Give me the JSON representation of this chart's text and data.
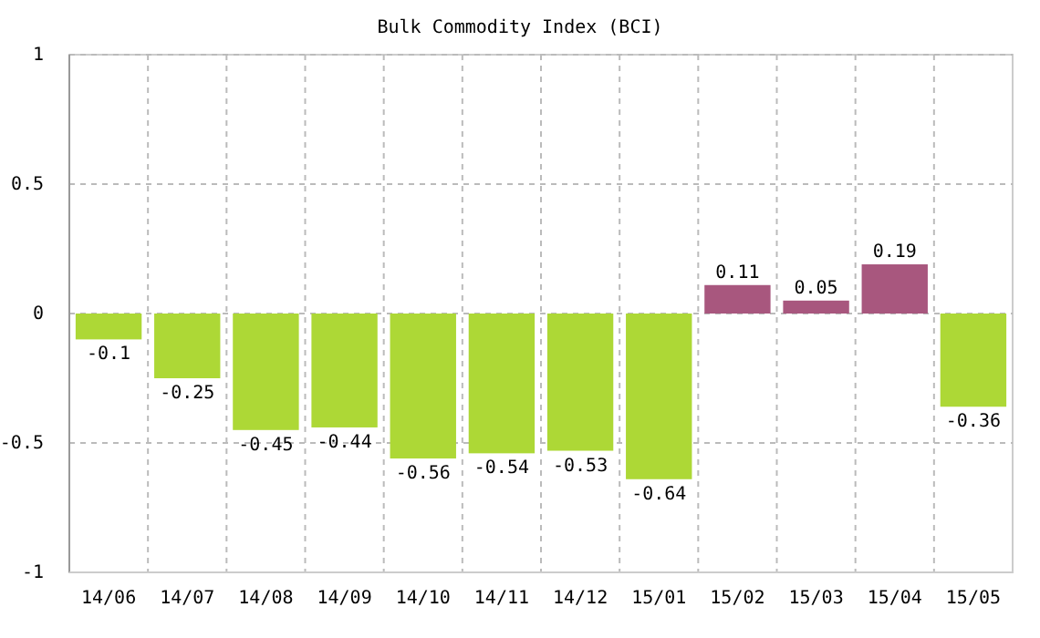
{
  "chart_data": {
    "type": "bar",
    "title": "Bulk Commodity Index (BCI)",
    "categories": [
      "14/06",
      "14/07",
      "14/08",
      "14/09",
      "14/10",
      "14/11",
      "14/12",
      "15/01",
      "15/02",
      "15/03",
      "15/04",
      "15/05"
    ],
    "values": [
      -0.1,
      -0.25,
      -0.45,
      -0.44,
      -0.56,
      -0.54,
      -0.53,
      -0.64,
      0.11,
      0.05,
      0.19,
      -0.36
    ],
    "colors": [
      "#add836",
      "#add836",
      "#add836",
      "#add836",
      "#add836",
      "#add836",
      "#add836",
      "#add836",
      "#a8577e",
      "#a8577e",
      "#a8577e",
      "#add836"
    ],
    "ylim": [
      -1,
      1
    ],
    "yticks": [
      -1,
      -0.5,
      0,
      0.5,
      1
    ],
    "grid": true,
    "data_labels": true
  }
}
